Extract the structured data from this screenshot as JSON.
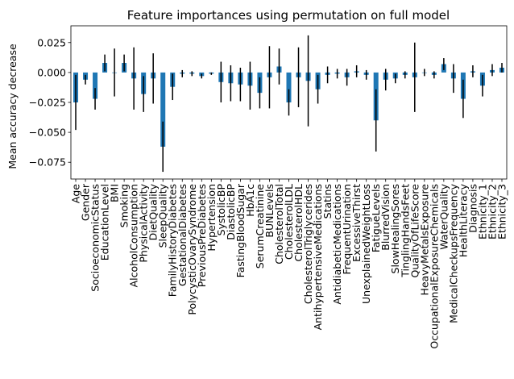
{
  "chart_data": {
    "type": "bar",
    "title": "Feature importances using permutation on full model",
    "xlabel": "",
    "ylabel": "Mean accuracy decrease",
    "ylim": [
      -0.089,
      0.039
    ],
    "yticks": [
      -0.075,
      -0.05,
      -0.025,
      0.0,
      0.025
    ],
    "ytick_labels": [
      "−0.075",
      "−0.050",
      "−0.025",
      "0.000",
      "0.025"
    ],
    "grid": false,
    "legend": "none",
    "bar_color": "#1f77b4",
    "error_color": "#000000",
    "categories": [
      "Age",
      "Gender",
      "SocioeconomicStatus",
      "EducationLevel",
      "BMI",
      "Smoking",
      "AlcoholConsumption",
      "PhysicalActivity",
      "DietQuality",
      "SleepQuality",
      "FamilyHistoryDiabetes",
      "GestationalDiabetes",
      "PolycysticOvarySyndrome",
      "PreviousPreDiabetes",
      "Hypertension",
      "SystolicBP",
      "DiastolicBP",
      "FastingBloodSugar",
      "HbA1c",
      "SerumCreatinine",
      "BUNLevels",
      "CholesterolTotal",
      "CholesterolLDL",
      "CholesterolHDL",
      "CholesterolTriglycerides",
      "AntihypertensiveMedications",
      "Statins",
      "AntidiabeticMedications",
      "FrequentUrination",
      "ExcessiveThirst",
      "UnexplainedWeightLoss",
      "FatigueLevels",
      "BlurredVision",
      "SlowHealingSores",
      "TinglingHandsFeet",
      "QualityOfLifeScore",
      "HeavyMetalsExposure",
      "OccupationalExposureChemicals",
      "WaterQuality",
      "MedicalCheckupsFrequency",
      "HealthLiteracy",
      "Diagnosis",
      "Ethnicity_1",
      "Ethnicity_2",
      "Ethnicity_3"
    ],
    "values": [
      -0.025,
      -0.006,
      -0.022,
      0.008,
      0.0,
      0.008,
      -0.005,
      -0.018,
      -0.005,
      -0.062,
      -0.012,
      -0.001,
      -0.001,
      -0.003,
      -0.001,
      -0.008,
      -0.009,
      -0.01,
      -0.011,
      -0.017,
      -0.004,
      0.005,
      -0.025,
      -0.004,
      -0.007,
      -0.014,
      -0.002,
      -0.001,
      -0.004,
      0.001,
      -0.002,
      -0.04,
      -0.006,
      -0.005,
      -0.002,
      -0.004,
      0.0,
      -0.002,
      0.007,
      -0.005,
      -0.022,
      0.001,
      -0.011,
      0.002,
      0.004
    ],
    "errors": [
      0.023,
      0.004,
      0.009,
      0.007,
      0.02,
      0.007,
      0.026,
      0.015,
      0.021,
      0.021,
      0.011,
      0.003,
      0.002,
      0.002,
      0.001,
      0.017,
      0.015,
      0.014,
      0.02,
      0.013,
      0.026,
      0.015,
      0.011,
      0.025,
      0.038,
      0.012,
      0.007,
      0.004,
      0.007,
      0.005,
      0.004,
      0.026,
      0.009,
      0.004,
      0.003,
      0.029,
      0.003,
      0.003,
      0.005,
      0.012,
      0.016,
      0.005,
      0.009,
      0.005,
      0.004
    ]
  }
}
